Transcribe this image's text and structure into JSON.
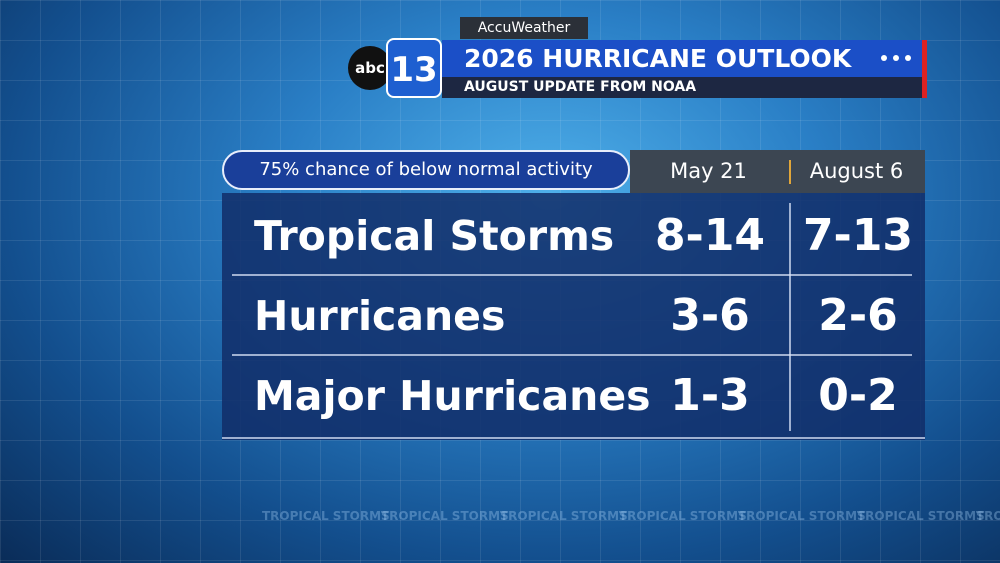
{
  "branding": {
    "accuweather": "AccuWeather",
    "network": "abc",
    "channel": "13"
  },
  "header": {
    "title": "2026 HURRICANE OUTLOOK",
    "subtitle": "AUGUST UPDATE FROM NOAA"
  },
  "note": "75% chance of below normal activity",
  "table": {
    "columns": [
      "May 21",
      "August 6"
    ],
    "rows": [
      [
        "Tropical Storms",
        "8-14",
        "7-13"
      ],
      [
        "Hurricanes",
        "3-6",
        "2-6"
      ],
      [
        "Major Hurricanes",
        "1-3",
        "0-2"
      ]
    ]
  },
  "background_text": "TROPICAL STORMS"
}
